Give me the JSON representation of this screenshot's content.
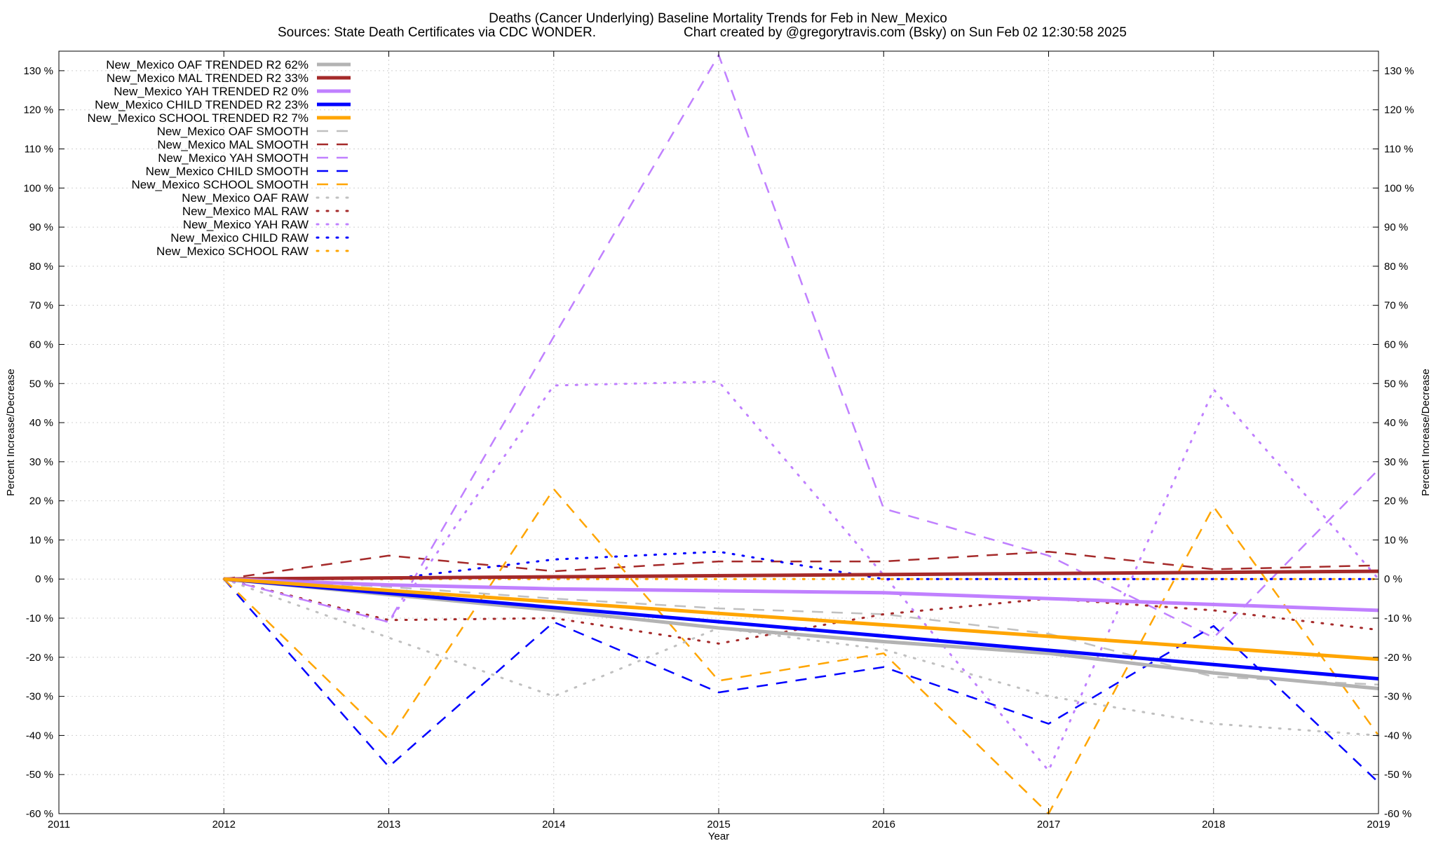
{
  "chart_data": {
    "type": "line",
    "title": "Deaths (Cancer Underlying)  Baseline Mortality Trends for Feb in New_Mexico",
    "subtitle_left": "Sources: State Death Certificates via CDC WONDER.",
    "subtitle_right": "Chart created by @gregorytravis.com (Bsky) on Sun Feb 02 12:30:58 2025",
    "xlabel": "Year",
    "ylabel": "Percent Increase/Decrease",
    "ylabel_right": "Percent Increase/Decrease",
    "xlim": [
      2011,
      2019
    ],
    "ylim": [
      -60,
      135
    ],
    "x_ticks": [
      "2011",
      "2012",
      "2013",
      "2014",
      "2015",
      "2016",
      "2017",
      "2018",
      "2019"
    ],
    "y_ticks": [
      130,
      120,
      110,
      100,
      90,
      80,
      70,
      60,
      50,
      40,
      30,
      20,
      10,
      0,
      -10,
      -20,
      -30,
      -40,
      -50,
      -60
    ],
    "y_tick_labels": [
      "130 %",
      "120 %",
      "110 %",
      "100 %",
      "90 %",
      "80 %",
      "70 %",
      "60 %",
      "50 %",
      "40 %",
      "30 %",
      "20 %",
      "10 %",
      "0 %",
      "-10 %",
      "-20 %",
      "-30 %",
      "-40 %",
      "-50 %",
      "-60 %"
    ],
    "grid": true,
    "legend_position": "top-left",
    "series": [
      {
        "name": "New_Mexico OAF TRENDED R2  62%",
        "color": "#b3b3b3",
        "style": "solid",
        "x": [
          2012,
          2013,
          2014,
          2015,
          2016,
          2017,
          2018,
          2019
        ],
        "values": [
          0,
          -4,
          -8,
          -12.5,
          -16,
          -19,
          -24,
          -28
        ]
      },
      {
        "name": "New_Mexico MAL TRENDED R2  33%",
        "color": "#a52a2a",
        "style": "solid",
        "x": [
          2012,
          2019
        ],
        "values": [
          0,
          2
        ]
      },
      {
        "name": "New_Mexico YAH TRENDED R2   0%",
        "color": "#c080ff",
        "style": "solid",
        "x": [
          2012,
          2013,
          2014,
          2015,
          2016,
          2017,
          2018,
          2019
        ],
        "values": [
          0,
          -1.5,
          -2.5,
          -3,
          -3.5,
          -5,
          -6.5,
          -8
        ]
      },
      {
        "name": "New_Mexico CHILD TRENDED R2  23%",
        "color": "#0000ff",
        "style": "solid",
        "x": [
          2012,
          2019
        ],
        "values": [
          0,
          -25.5
        ]
      },
      {
        "name": "New_Mexico SCHOOL TRENDED R2   7%",
        "color": "#ffa500",
        "style": "solid",
        "x": [
          2012,
          2019
        ],
        "values": [
          0,
          -20.5
        ]
      },
      {
        "name": "New_Mexico OAF SMOOTH",
        "color": "#c0c0c0",
        "style": "dash",
        "x": [
          2012,
          2013,
          2014,
          2015,
          2016,
          2017,
          2018,
          2019
        ],
        "values": [
          0,
          -2,
          -5,
          -7.5,
          -9,
          -14,
          -25,
          -27
        ]
      },
      {
        "name": "New_Mexico MAL SMOOTH",
        "color": "#a52a2a",
        "style": "dash",
        "x": [
          2012,
          2013,
          2014,
          2015,
          2016,
          2017,
          2018,
          2019
        ],
        "values": [
          0,
          6,
          2,
          4.5,
          4.5,
          7,
          2.5,
          3.5
        ]
      },
      {
        "name": "New_Mexico YAH SMOOTH",
        "color": "#c080ff",
        "style": "dash",
        "x": [
          2012,
          2013,
          2014,
          2015,
          2016,
          2017,
          2018,
          2019
        ],
        "values": [
          0,
          -11,
          62,
          134,
          18,
          6,
          -15,
          28
        ]
      },
      {
        "name": "New_Mexico CHILD SMOOTH",
        "color": "#0000ff",
        "style": "dash",
        "x": [
          2012,
          2013,
          2014,
          2015,
          2016,
          2017,
          2018,
          2019
        ],
        "values": [
          0,
          -48,
          -11,
          -29,
          -22.5,
          -37,
          -12,
          -52
        ]
      },
      {
        "name": "New_Mexico SCHOOL SMOOTH",
        "color": "#ffa500",
        "style": "dash",
        "x": [
          2012,
          2013,
          2014,
          2015,
          2016,
          2017,
          2018,
          2019
        ],
        "values": [
          0,
          -41,
          23,
          -26,
          -19,
          -60,
          18.5,
          -40
        ]
      },
      {
        "name": "New_Mexico OAF RAW",
        "color": "#c0c0c0",
        "style": "dot",
        "x": [
          2012,
          2013,
          2014,
          2015,
          2016,
          2017,
          2018,
          2019
        ],
        "values": [
          0,
          -15,
          -30,
          -12.5,
          -18,
          -30,
          -37,
          -40
        ]
      },
      {
        "name": "New_Mexico MAL RAW",
        "color": "#a52a2a",
        "style": "dot",
        "x": [
          2012,
          2013,
          2014,
          2015,
          2016,
          2017,
          2018,
          2019
        ],
        "values": [
          0,
          -10.5,
          -10,
          -16.5,
          -9,
          -5,
          -8,
          -13
        ]
      },
      {
        "name": "New_Mexico YAH RAW",
        "color": "#c080ff",
        "style": "dot",
        "x": [
          2012,
          2013,
          2014,
          2015,
          2016,
          2017,
          2018,
          2019
        ],
        "values": [
          0,
          -11,
          49.5,
          50.5,
          1,
          -49,
          48.5,
          0
        ]
      },
      {
        "name": "New_Mexico CHILD RAW",
        "color": "#0000ff",
        "style": "dot",
        "x": [
          2012,
          2013,
          2014,
          2015,
          2016,
          2017,
          2018,
          2019
        ],
        "values": [
          0,
          0,
          5,
          7,
          0,
          0,
          0,
          0
        ]
      },
      {
        "name": "New_Mexico SCHOOL RAW",
        "color": "#ffa500",
        "style": "dot",
        "x": [
          2012,
          2013,
          2014,
          2015,
          2016,
          2017,
          2018,
          2019
        ],
        "values": [
          0,
          0,
          0,
          0,
          0,
          0,
          0,
          0
        ]
      }
    ]
  }
}
